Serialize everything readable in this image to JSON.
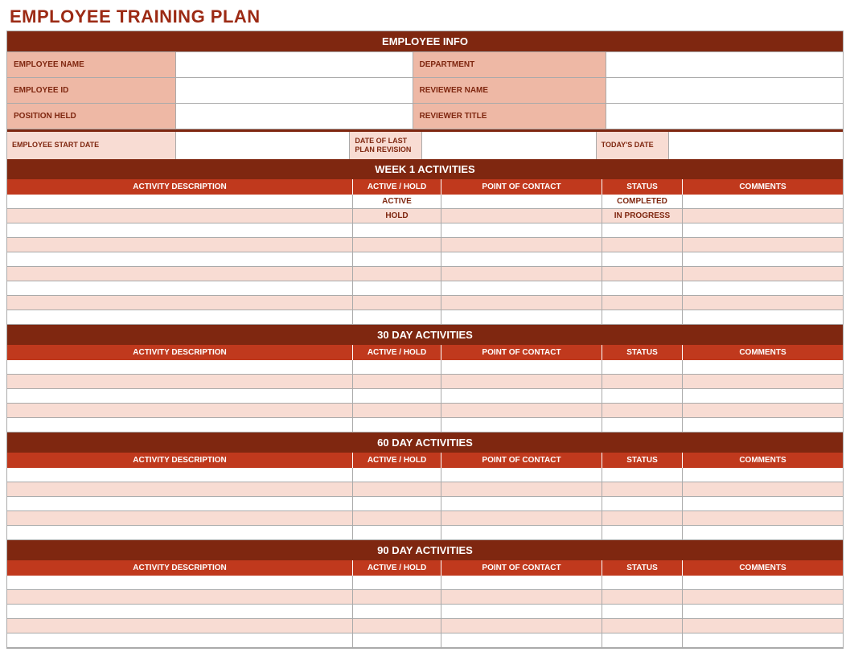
{
  "title": "EMPLOYEE TRAINING PLAN",
  "colors": {
    "title_text": "#9c2a14",
    "banner_bg": "#7f2710",
    "banner_text": "#ffffff",
    "header_bg": "#c0391d",
    "header_text": "#ffffff",
    "label_bg_dark": "#eeb8a5",
    "label_bg_light": "#f8dcd3",
    "row_alt_bg": "#f8dcd3",
    "row_bg": "#ffffff",
    "border": "#aaaaaa",
    "border_dark": "#7f2710",
    "cell_text": "#7f2710",
    "white": "#ffffff"
  },
  "employee_info": {
    "banner": "EMPLOYEE INFO",
    "fields": [
      {
        "label": "EMPLOYEE NAME",
        "value": "",
        "label2": "DEPARTMENT",
        "value2": ""
      },
      {
        "label": "EMPLOYEE ID",
        "value": "",
        "label2": "REVIEWER NAME",
        "value2": ""
      },
      {
        "label": "POSITION HELD",
        "value": "",
        "label2": "REVIEWER TITLE",
        "value2": ""
      }
    ]
  },
  "dates": {
    "start_label": "EMPLOYEE START DATE",
    "start_value": "",
    "revision_label": "DATE OF LAST PLAN REVISION",
    "revision_value": "",
    "today_label": "TODAY'S DATE",
    "today_value": ""
  },
  "columns": {
    "c1": "ACTIVITY DESCRIPTION",
    "c2": "ACTIVE / HOLD",
    "c3": "POINT OF CONTACT",
    "c4": "STATUS",
    "c5": "COMMENTS"
  },
  "sections": [
    {
      "banner": "WEEK 1 ACTIVITIES",
      "rows": [
        {
          "desc": "",
          "active": "ACTIVE",
          "poc": "",
          "status": "COMPLETED",
          "comments": ""
        },
        {
          "desc": "",
          "active": "HOLD",
          "poc": "",
          "status": "IN PROGRESS",
          "comments": ""
        },
        {
          "desc": "",
          "active": "",
          "poc": "",
          "status": "",
          "comments": ""
        },
        {
          "desc": "",
          "active": "",
          "poc": "",
          "status": "",
          "comments": ""
        },
        {
          "desc": "",
          "active": "",
          "poc": "",
          "status": "",
          "comments": ""
        },
        {
          "desc": "",
          "active": "",
          "poc": "",
          "status": "",
          "comments": ""
        },
        {
          "desc": "",
          "active": "",
          "poc": "",
          "status": "",
          "comments": ""
        },
        {
          "desc": "",
          "active": "",
          "poc": "",
          "status": "",
          "comments": ""
        },
        {
          "desc": "",
          "active": "",
          "poc": "",
          "status": "",
          "comments": ""
        }
      ]
    },
    {
      "banner": "30 DAY ACTIVITIES",
      "rows": [
        {
          "desc": "",
          "active": "",
          "poc": "",
          "status": "",
          "comments": ""
        },
        {
          "desc": "",
          "active": "",
          "poc": "",
          "status": "",
          "comments": ""
        },
        {
          "desc": "",
          "active": "",
          "poc": "",
          "status": "",
          "comments": ""
        },
        {
          "desc": "",
          "active": "",
          "poc": "",
          "status": "",
          "comments": ""
        },
        {
          "desc": "",
          "active": "",
          "poc": "",
          "status": "",
          "comments": ""
        }
      ]
    },
    {
      "banner": "60 DAY ACTIVITIES",
      "rows": [
        {
          "desc": "",
          "active": "",
          "poc": "",
          "status": "",
          "comments": ""
        },
        {
          "desc": "",
          "active": "",
          "poc": "",
          "status": "",
          "comments": ""
        },
        {
          "desc": "",
          "active": "",
          "poc": "",
          "status": "",
          "comments": ""
        },
        {
          "desc": "",
          "active": "",
          "poc": "",
          "status": "",
          "comments": ""
        },
        {
          "desc": "",
          "active": "",
          "poc": "",
          "status": "",
          "comments": ""
        }
      ]
    },
    {
      "banner": "90 DAY ACTIVITIES",
      "rows": [
        {
          "desc": "",
          "active": "",
          "poc": "",
          "status": "",
          "comments": ""
        },
        {
          "desc": "",
          "active": "",
          "poc": "",
          "status": "",
          "comments": ""
        },
        {
          "desc": "",
          "active": "",
          "poc": "",
          "status": "",
          "comments": ""
        },
        {
          "desc": "",
          "active": "",
          "poc": "",
          "status": "",
          "comments": ""
        },
        {
          "desc": "",
          "active": "",
          "poc": "",
          "status": "",
          "comments": ""
        }
      ]
    }
  ]
}
